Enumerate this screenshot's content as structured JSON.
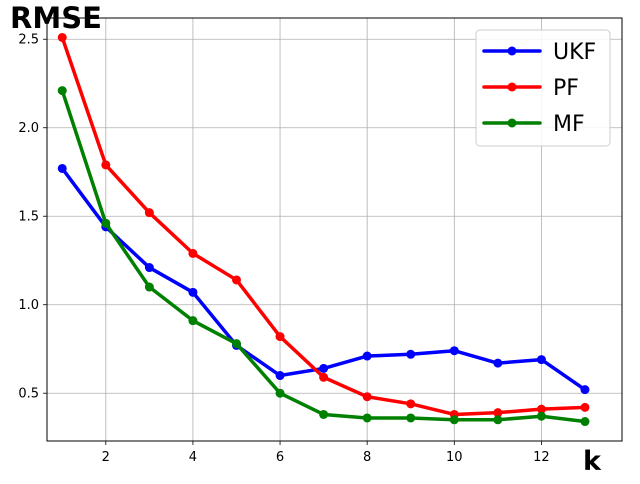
{
  "chart_data": {
    "type": "line",
    "ylabel": "RMSE",
    "xlabel": "k",
    "xlim": [
      0.65,
      13.85
    ],
    "ylim": [
      0.23,
      2.62
    ],
    "x_ticks": [
      2,
      4,
      6,
      8,
      10,
      12
    ],
    "y_ticks": [
      0.5,
      1.0,
      1.5,
      2.0,
      2.5
    ],
    "x_tick_labels": [
      "2",
      "4",
      "6",
      "8",
      "10",
      "12"
    ],
    "y_tick_labels": [
      "0.5",
      "1.0",
      "1.5",
      "2.0",
      "2.5"
    ],
    "grid": true,
    "legend_position": "top-right",
    "x": [
      1,
      2,
      3,
      4,
      5,
      6,
      7,
      8,
      9,
      10,
      11,
      12,
      13
    ],
    "series": [
      {
        "name": "UKF",
        "color": "#0000ff",
        "values": [
          1.77,
          1.44,
          1.21,
          1.07,
          0.77,
          0.6,
          0.64,
          0.71,
          0.72,
          0.74,
          0.67,
          0.69,
          0.52
        ]
      },
      {
        "name": "PF",
        "color": "#ff0000",
        "values": [
          2.51,
          1.79,
          1.52,
          1.29,
          1.14,
          0.82,
          0.59,
          0.48,
          0.44,
          0.38,
          0.39,
          0.41,
          0.42
        ]
      },
      {
        "name": "MF",
        "color": "#008000",
        "values": [
          2.21,
          1.46,
          1.1,
          0.91,
          0.78,
          0.5,
          0.38,
          0.36,
          0.36,
          0.35,
          0.35,
          0.37,
          0.34
        ]
      }
    ]
  }
}
